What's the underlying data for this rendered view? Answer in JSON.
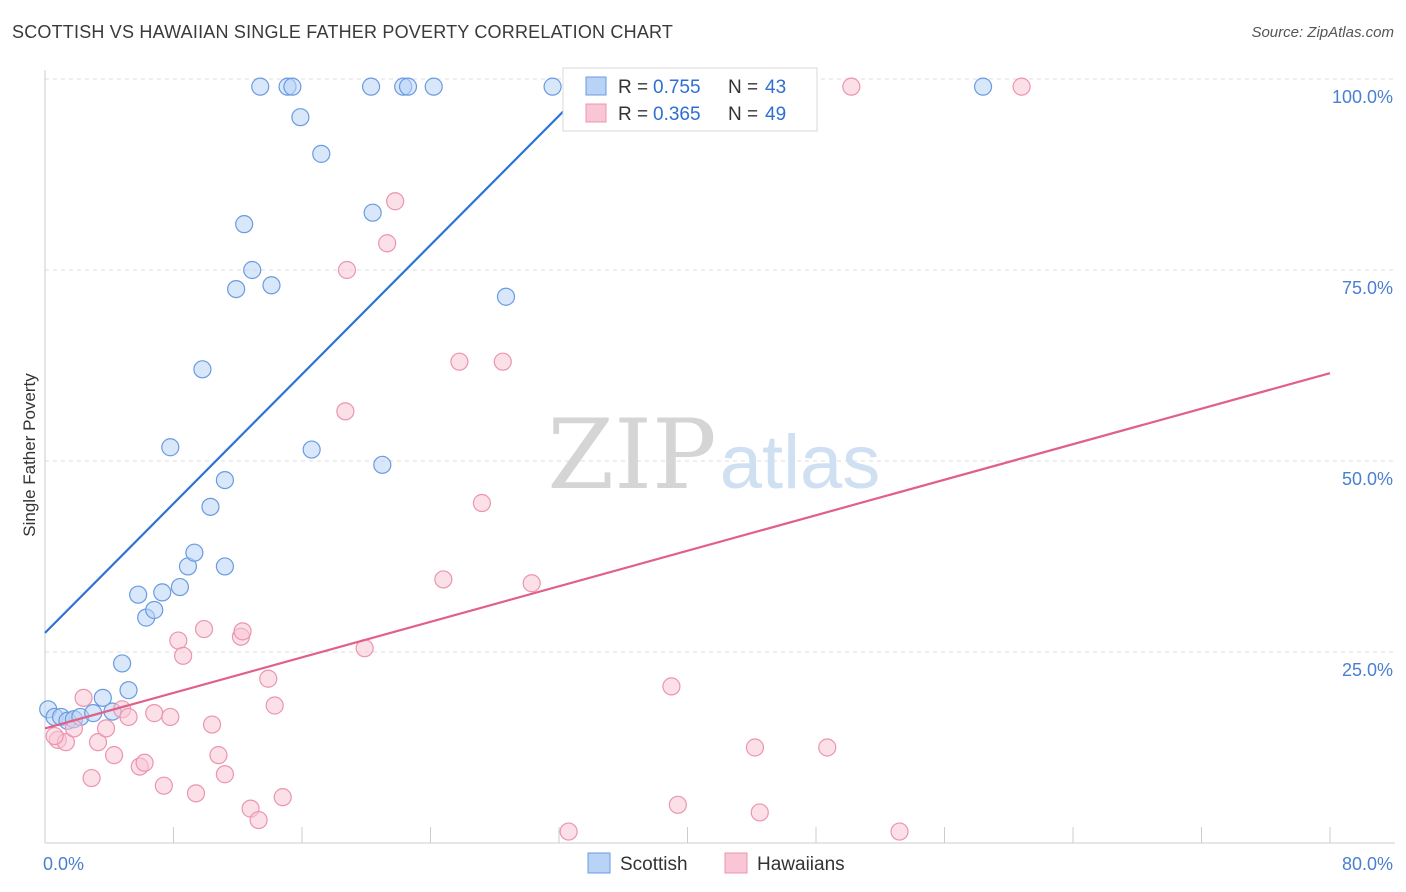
{
  "title": "SCOTTISH VS HAWAIIAN SINGLE FATHER POVERTY CORRELATION CHART",
  "source": "Source: ZipAtlas.com",
  "watermark": {
    "zip": "ZIP",
    "atlas": "atlas"
  },
  "legend": {
    "r_label": "R = ",
    "n_label": "N = ",
    "scottish": {
      "r": "0.755",
      "n": "43"
    },
    "hawaiian": {
      "r": "0.365",
      "n": "49"
    }
  },
  "bottom_legend": {
    "scottish": "Scottish",
    "hawaiians": "Hawaiians"
  },
  "colors": {
    "scottish_fill": "#b8d3f5",
    "scottish_stroke": "#6a9be0",
    "scottish_line": "#2b74d6",
    "hawaiian_fill": "#f8c6d5",
    "hawaiian_stroke": "#ec94b1",
    "hawaiian_line": "#e0608a",
    "tick_text": "#4a7fd0",
    "grid": "#dddddd"
  },
  "chart_data": {
    "type": "scatter",
    "title": "SCOTTISH VS HAWAIIAN SINGLE FATHER POVERTY CORRELATION CHART",
    "xlabel": "",
    "ylabel": "Single Father Poverty",
    "xlim": [
      0,
      80
    ],
    "ylim": [
      0,
      102
    ],
    "x_tick_labels": [
      {
        "value": 0,
        "label": "0.0%"
      },
      {
        "value": 80,
        "label": "80.0%"
      }
    ],
    "x_tick_marks": [
      0,
      8,
      16,
      24,
      32,
      40,
      48,
      56,
      64,
      72,
      80
    ],
    "y_ticks": [
      {
        "value": 25,
        "label": "25.0%"
      },
      {
        "value": 50,
        "label": "50.0%"
      },
      {
        "value": 75,
        "label": "75.0%"
      },
      {
        "value": 100,
        "label": "100.0%"
      }
    ],
    "grid": true,
    "legend_position": "top-center",
    "series": [
      {
        "name": "Scottish",
        "points": [
          [
            0.2,
            17.5
          ],
          [
            0.6,
            16.5
          ],
          [
            1.0,
            16.5
          ],
          [
            1.4,
            16.0
          ],
          [
            1.8,
            16.2
          ],
          [
            2.2,
            16.5
          ],
          [
            3.0,
            17.0
          ],
          [
            3.6,
            19.0
          ],
          [
            4.2,
            17.2
          ],
          [
            4.8,
            23.5
          ],
          [
            5.2,
            20.0
          ],
          [
            5.8,
            32.5
          ],
          [
            6.3,
            29.5
          ],
          [
            6.8,
            30.5
          ],
          [
            7.3,
            32.8
          ],
          [
            7.8,
            51.8
          ],
          [
            8.4,
            33.5
          ],
          [
            8.9,
            36.2
          ],
          [
            9.3,
            38.0
          ],
          [
            9.8,
            62.0
          ],
          [
            10.3,
            44.0
          ],
          [
            11.2,
            47.5
          ],
          [
            11.2,
            36.2
          ],
          [
            11.9,
            72.5
          ],
          [
            12.4,
            81.0
          ],
          [
            12.9,
            75.0
          ],
          [
            13.4,
            99.0
          ],
          [
            14.1,
            73.0
          ],
          [
            15.1,
            99.0
          ],
          [
            15.4,
            99.0
          ],
          [
            15.9,
            95.0
          ],
          [
            16.6,
            51.5
          ],
          [
            17.2,
            90.2
          ],
          [
            20.3,
            99.0
          ],
          [
            20.4,
            82.5
          ],
          [
            21.0,
            49.5
          ],
          [
            22.3,
            99.0
          ],
          [
            22.6,
            99.0
          ],
          [
            24.2,
            99.0
          ],
          [
            28.7,
            71.5
          ],
          [
            31.6,
            99.0
          ],
          [
            42.5,
            99.0
          ],
          [
            58.4,
            99.0
          ]
        ],
        "trendline": {
          "x": [
            0,
            33.8
          ],
          "y": [
            27.5,
            99.0
          ]
        }
      },
      {
        "name": "Hawaiians",
        "points": [
          [
            0.8,
            13.5
          ],
          [
            1.3,
            13.2
          ],
          [
            1.8,
            15.0
          ],
          [
            2.4,
            19.0
          ],
          [
            2.9,
            8.5
          ],
          [
            3.3,
            13.2
          ],
          [
            3.8,
            15.0
          ],
          [
            4.3,
            11.5
          ],
          [
            4.8,
            17.5
          ],
          [
            5.2,
            16.5
          ],
          [
            5.9,
            10.0
          ],
          [
            6.2,
            10.5
          ],
          [
            6.8,
            17.0
          ],
          [
            7.4,
            7.5
          ],
          [
            7.8,
            16.5
          ],
          [
            8.3,
            26.5
          ],
          [
            8.6,
            24.5
          ],
          [
            9.4,
            6.5
          ],
          [
            9.9,
            28.0
          ],
          [
            10.4,
            15.5
          ],
          [
            10.8,
            11.5
          ],
          [
            11.2,
            9.0
          ],
          [
            12.2,
            27.0
          ],
          [
            12.3,
            27.7
          ],
          [
            12.8,
            4.5
          ],
          [
            13.3,
            3.0
          ],
          [
            13.9,
            21.5
          ],
          [
            14.3,
            18.0
          ],
          [
            14.8,
            6.0
          ],
          [
            18.7,
            56.5
          ],
          [
            18.8,
            75.0
          ],
          [
            19.9,
            25.5
          ],
          [
            21.3,
            78.5
          ],
          [
            21.8,
            84.0
          ],
          [
            24.8,
            34.5
          ],
          [
            25.8,
            63.0
          ],
          [
            27.2,
            44.5
          ],
          [
            28.5,
            63.0
          ],
          [
            30.3,
            34.0
          ],
          [
            32.6,
            1.5
          ],
          [
            39.0,
            20.5
          ],
          [
            39.4,
            5.0
          ],
          [
            44.2,
            12.5
          ],
          [
            44.5,
            4.0
          ],
          [
            48.7,
            12.5
          ],
          [
            50.2,
            99.0
          ],
          [
            53.2,
            1.5
          ],
          [
            60.8,
            99.0
          ],
          [
            0.6,
            14.0
          ]
        ],
        "trendline": {
          "x": [
            0,
            80
          ],
          "y": [
            15.0,
            61.5
          ]
        }
      }
    ]
  }
}
